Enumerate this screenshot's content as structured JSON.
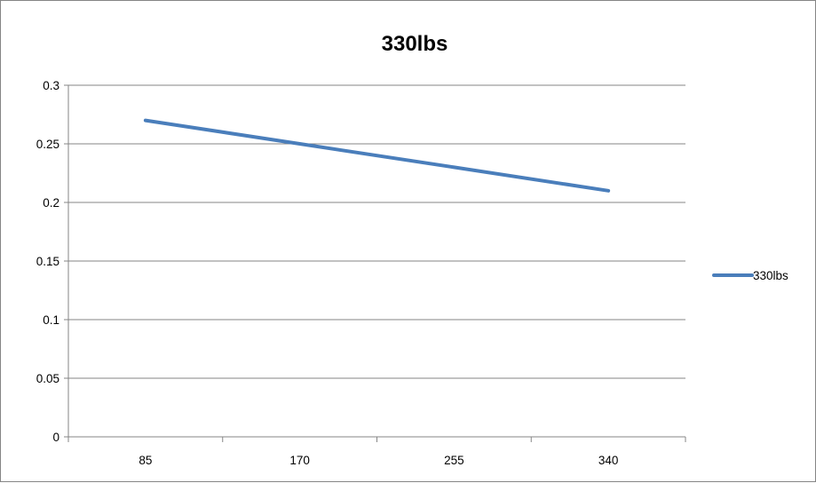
{
  "chart_data": {
    "type": "line",
    "title": "330lbs",
    "xlabel": "",
    "ylabel": "",
    "categories": [
      "85",
      "170",
      "255",
      "340"
    ],
    "series": [
      {
        "name": "330lbs",
        "values": [
          0.27,
          0.25,
          0.23,
          0.21
        ],
        "color": "#4A7EBB"
      }
    ],
    "ylim": [
      0,
      0.3
    ],
    "yticks": [
      "0",
      "0.05",
      "0.1",
      "0.15",
      "0.2",
      "0.25",
      "0.3"
    ],
    "grid": true,
    "legend_position": "right"
  }
}
